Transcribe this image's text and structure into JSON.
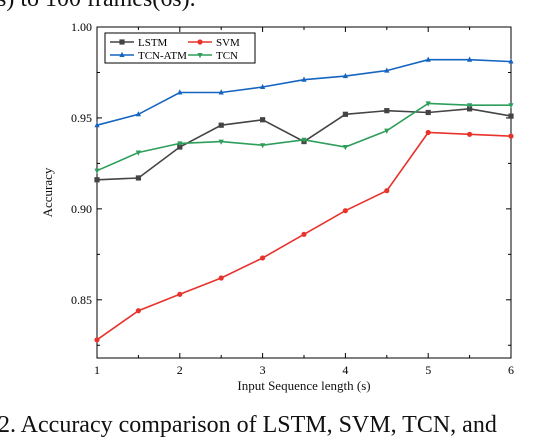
{
  "top_text": "s) to 100 frames(6s).",
  "caption": "2. Accuracy comparison of LSTM, SVM, TCN, and",
  "chart_data": {
    "type": "line",
    "xlabel": "Input Sequence length (s)",
    "ylabel": "Accuracy",
    "xlim": [
      1,
      6
    ],
    "ylim": [
      0.818,
      1.0
    ],
    "xticks": [
      1,
      2,
      3,
      4,
      5,
      6
    ],
    "yticks": [
      0.85,
      0.9,
      0.95,
      1.0
    ],
    "ytick_labels": [
      "0.85",
      "0.90",
      "0.95",
      "1.00"
    ],
    "grid": false,
    "legend_position": "top-left",
    "x": [
      1,
      1.5,
      2,
      2.5,
      3,
      3.5,
      4,
      4.5,
      5,
      5.5,
      6
    ],
    "series": [
      {
        "name": "LSTM",
        "color": "#444444",
        "marker": "square",
        "values": [
          0.916,
          0.917,
          0.934,
          0.946,
          0.949,
          0.937,
          0.952,
          0.954,
          0.953,
          0.955,
          0.951
        ]
      },
      {
        "name": "SVM",
        "color": "#e8332c",
        "marker": "circle",
        "values": [
          0.828,
          0.844,
          0.853,
          0.862,
          0.873,
          0.886,
          0.899,
          0.91,
          0.942,
          0.941,
          0.94
        ]
      },
      {
        "name": "TCN-ATM",
        "color": "#1565c0",
        "marker": "triangle-up",
        "values": [
          0.946,
          0.952,
          0.964,
          0.964,
          0.967,
          0.971,
          0.973,
          0.976,
          0.982,
          0.982,
          0.981
        ]
      },
      {
        "name": "TCN",
        "color": "#2e9e5b",
        "marker": "triangle-down",
        "values": [
          0.921,
          0.931,
          0.936,
          0.937,
          0.935,
          0.938,
          0.934,
          0.943,
          0.958,
          0.957,
          0.957
        ]
      }
    ]
  }
}
